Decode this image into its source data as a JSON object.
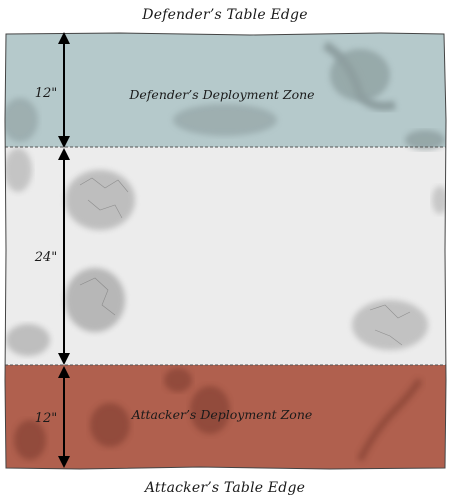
{
  "edges": {
    "top": "Defender’s Table Edge",
    "bottom": "Attacker’s Table Edge"
  },
  "zones": {
    "defender": {
      "label": "Defender’s Deployment Zone",
      "color": "#b5c9cb"
    },
    "attacker": {
      "label": "Attacker’s Deployment Zone",
      "color": "#b0604e"
    },
    "middle_color": "#ececec"
  },
  "distances": {
    "defender": "12\"",
    "middle": "24\"",
    "attacker": "12\""
  }
}
